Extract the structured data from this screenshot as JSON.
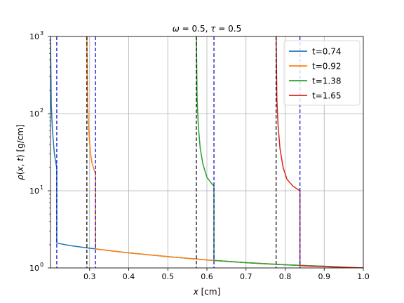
{
  "chart_data": {
    "type": "line",
    "title": "ω = 0.5,  τ = 0.5",
    "xlabel": "x [cm]",
    "ylabel": "ρ(x, t)  [g/cm]",
    "xlim": [
      0.2,
      1.0
    ],
    "ylim": [
      1,
      1000
    ],
    "yscale": "log",
    "grid": true,
    "legend_position": "top-right",
    "x_ticks": [
      "0.3",
      "0.4",
      "0.5",
      "0.6",
      "0.7",
      "0.8",
      "0.9",
      "1.0"
    ],
    "x_tick_values": [
      0.3,
      0.4,
      0.5,
      0.6,
      0.7,
      0.8,
      0.9,
      1.0
    ],
    "y_ticks": [
      {
        "value": 1,
        "mantissa": "10",
        "exp": "0"
      },
      {
        "value": 10,
        "mantissa": "10",
        "exp": "1"
      },
      {
        "value": 100,
        "mantissa": "10",
        "exp": "2"
      },
      {
        "value": 1000,
        "mantissa": "10",
        "exp": "3"
      }
    ],
    "series": [
      {
        "name": "t=0.74",
        "color": "#1f77b4",
        "inner_x": [
          0.2,
          0.202,
          0.205,
          0.21,
          0.213,
          0.216
        ],
        "inner_y": [
          1000,
          130,
          60,
          30,
          24,
          20
        ],
        "shock_x": 0.216,
        "shock_jump": [
          20,
          2.1
        ],
        "outer_x": [
          0.216,
          0.25,
          0.3,
          0.35,
          0.4,
          0.5,
          0.6,
          0.7,
          0.8,
          0.9,
          1.0
        ],
        "outer_y": [
          2.1,
          1.95,
          1.8,
          1.68,
          1.57,
          1.4,
          1.27,
          1.17,
          1.1,
          1.05,
          1.0
        ],
        "front_x": 0.2,
        "end_x": 0.216
      },
      {
        "name": "t=0.92",
        "color": "#ff7f0e",
        "inner_x": [
          0.293,
          0.295,
          0.298,
          0.302,
          0.306,
          0.311,
          0.315
        ],
        "inner_y": [
          1000,
          130,
          60,
          32,
          23,
          19,
          17
        ],
        "shock_x": 0.315,
        "shock_jump": [
          17,
          1.76
        ],
        "outer_x": [
          0.315,
          0.35,
          0.4,
          0.5,
          0.6,
          0.7,
          0.8,
          0.9,
          1.0
        ],
        "outer_y": [
          1.76,
          1.68,
          1.57,
          1.4,
          1.27,
          1.17,
          1.1,
          1.05,
          1.0
        ],
        "front_x": 0.293,
        "end_x": 0.315
      },
      {
        "name": "t=1.38",
        "color": "#2ca02c",
        "inner_x": [
          0.573,
          0.575,
          0.578,
          0.583,
          0.59,
          0.6,
          0.61,
          0.618
        ],
        "inner_y": [
          1000,
          150,
          70,
          35,
          22,
          15,
          12.8,
          11.5
        ],
        "shock_x": 0.618,
        "shock_jump": [
          11.5,
          1.25
        ],
        "outer_x": [
          0.618,
          0.65,
          0.7,
          0.75,
          0.8,
          0.85,
          0.9,
          0.95,
          1.0
        ],
        "outer_y": [
          1.25,
          1.22,
          1.17,
          1.13,
          1.1,
          1.07,
          1.05,
          1.02,
          1.0
        ],
        "front_x": 0.573,
        "end_x": 0.618
      },
      {
        "name": "t=1.65",
        "color": "#d62728",
        "inner_x": [
          0.777,
          0.779,
          0.782,
          0.787,
          0.795,
          0.805,
          0.82,
          0.838
        ],
        "inner_y": [
          1000,
          150,
          70,
          35,
          20,
          14,
          11.5,
          10
        ],
        "shock_x": 0.838,
        "shock_jump": [
          10,
          1.07
        ],
        "outer_x": [
          0.838,
          0.87,
          0.9,
          0.93,
          0.96,
          1.0
        ],
        "outer_y": [
          1.07,
          1.05,
          1.04,
          1.025,
          1.01,
          1.0
        ],
        "front_x": 0.777,
        "end_x": 0.838
      }
    ],
    "vlines_black": [
      0.293,
      0.573,
      0.777
    ],
    "vlines_blue": [
      0.216,
      0.315,
      0.618,
      0.838
    ],
    "vline_black_color": "#000000",
    "vline_blue_color": "#0000cc"
  }
}
